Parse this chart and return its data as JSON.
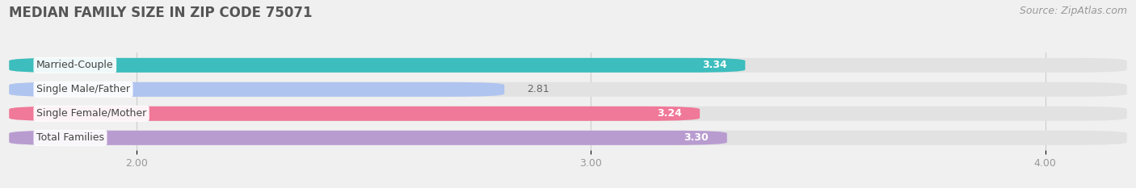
{
  "title": "MEDIAN FAMILY SIZE IN ZIP CODE 75071",
  "source": "Source: ZipAtlas.com",
  "categories": [
    "Married-Couple",
    "Single Male/Father",
    "Single Female/Mother",
    "Total Families"
  ],
  "values": [
    3.34,
    2.81,
    3.24,
    3.3
  ],
  "bar_colors": [
    "#3dbdbd",
    "#b0c4f0",
    "#f07898",
    "#b89cd0"
  ],
  "xlim_left": 1.72,
  "xlim_right": 4.18,
  "xticks": [
    2.0,
    3.0,
    4.0
  ],
  "xtick_labels": [
    "2.00",
    "3.00",
    "4.00"
  ],
  "background_color": "#f0f0f0",
  "bar_bg_color": "#e2e2e2",
  "title_fontsize": 12,
  "label_fontsize": 9,
  "value_fontsize": 9,
  "source_fontsize": 9,
  "value_inside_threshold": 2.9
}
